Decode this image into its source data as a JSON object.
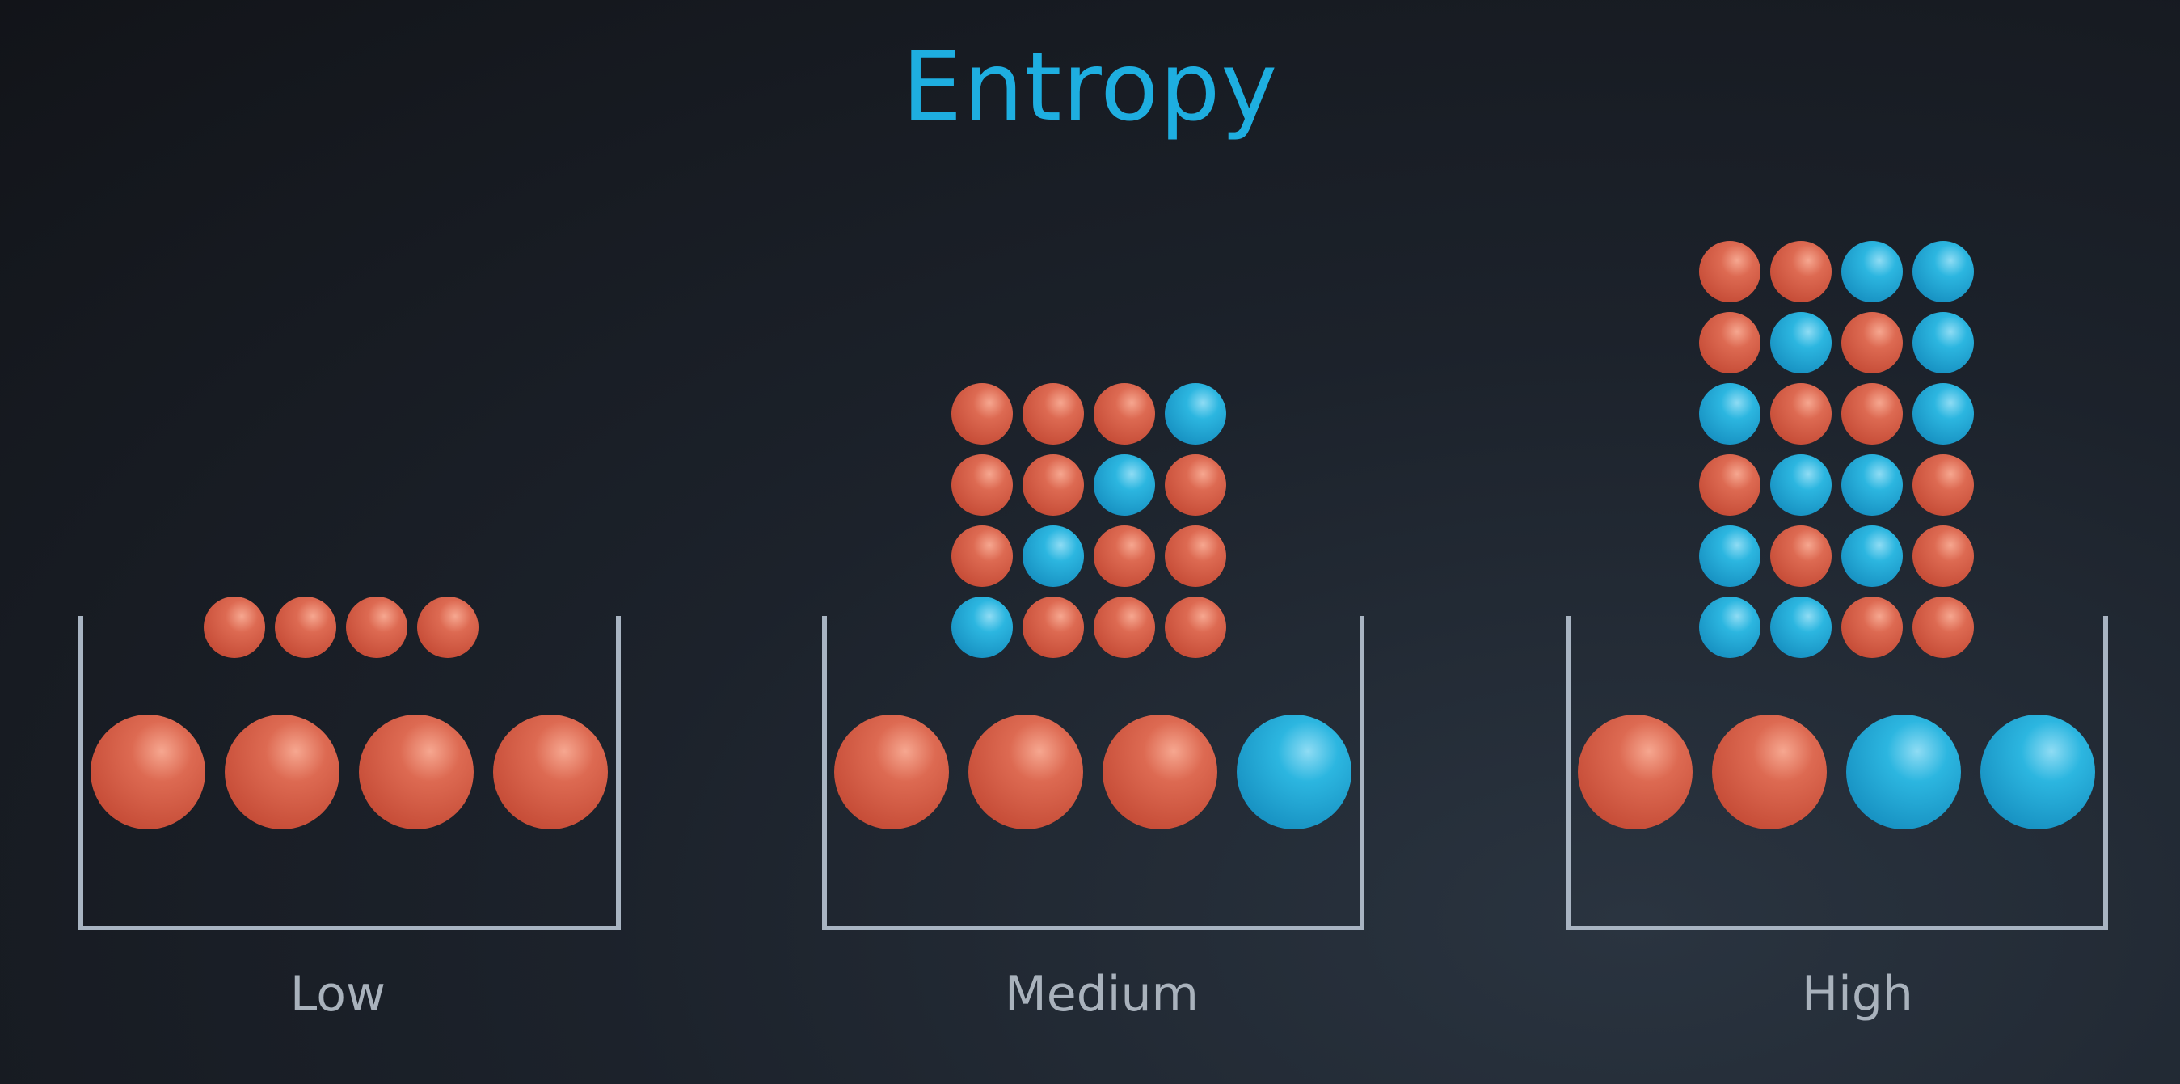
{
  "title": "Entropy",
  "colors": {
    "red": "#d25842",
    "blue": "#1da6d2",
    "container": "#a8b4c2",
    "title": "#1eaee0"
  },
  "containers": [
    {
      "label": "Low",
      "contents": [
        "red",
        "red",
        "red",
        "red"
      ],
      "arrangements": [
        [
          "red",
          "red",
          "red",
          "red"
        ]
      ]
    },
    {
      "label": "Medium",
      "contents": [
        "red",
        "red",
        "red",
        "blue"
      ],
      "arrangements": [
        [
          "red",
          "red",
          "red",
          "blue"
        ],
        [
          "red",
          "red",
          "blue",
          "red"
        ],
        [
          "red",
          "blue",
          "red",
          "red"
        ],
        [
          "blue",
          "red",
          "red",
          "red"
        ]
      ]
    },
    {
      "label": "High",
      "contents": [
        "red",
        "red",
        "blue",
        "blue"
      ],
      "arrangements": [
        [
          "red",
          "red",
          "blue",
          "blue"
        ],
        [
          "red",
          "blue",
          "red",
          "blue"
        ],
        [
          "blue",
          "red",
          "red",
          "blue"
        ],
        [
          "red",
          "blue",
          "blue",
          "red"
        ],
        [
          "blue",
          "red",
          "blue",
          "red"
        ],
        [
          "blue",
          "blue",
          "red",
          "red"
        ]
      ]
    }
  ]
}
